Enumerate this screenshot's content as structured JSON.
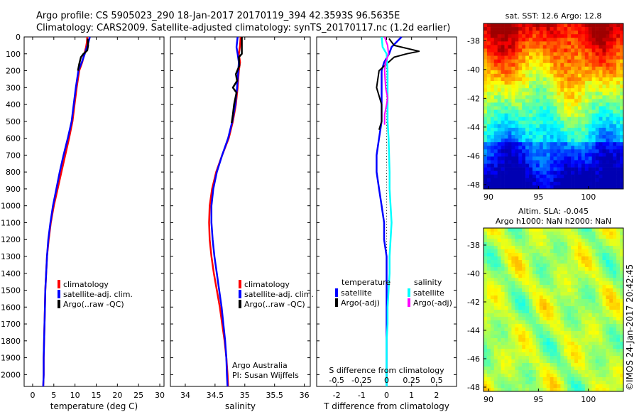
{
  "header": {
    "line1": "Argo profile: CS 5905023_290 18-Jan-2017 20170119_394 42.3593S 96.5635E",
    "line2": "Climatology: CARS2009. Satellite-adjusted climatology: synTS_20170117.nc (1.2d earlier)"
  },
  "colors": {
    "clim": "#ff0000",
    "sat": "#0000ff",
    "argo": "#000000",
    "sat_s": "#00ffff",
    "argo_s": "#ff00ff"
  },
  "chart_data": [
    {
      "type": "line",
      "xlabel": "temperature (deg C)",
      "xlim": [
        -2,
        31
      ],
      "ylim": [
        2070,
        0
      ],
      "xticks": [
        0,
        5,
        10,
        15,
        20,
        25,
        30
      ],
      "yticks": [
        0,
        100,
        200,
        300,
        400,
        500,
        600,
        700,
        800,
        900,
        1000,
        1100,
        1200,
        1300,
        1400,
        1500,
        1600,
        1700,
        1800,
        1900,
        2000
      ],
      "legend": [
        "climatology",
        "satellite-adj. clim.",
        "Argo(..raw -QC)"
      ],
      "series": [
        {
          "name": "climatology",
          "color": "clim",
          "points": [
            [
              12.9,
              0
            ],
            [
              12.8,
              30
            ],
            [
              12.6,
              60
            ],
            [
              12.2,
              100
            ],
            [
              11.7,
              150
            ],
            [
              11.0,
              200
            ],
            [
              10.4,
              300
            ],
            [
              9.9,
              400
            ],
            [
              9.4,
              500
            ],
            [
              8.6,
              600
            ],
            [
              7.7,
              700
            ],
            [
              6.8,
              800
            ],
            [
              5.9,
              900
            ],
            [
              5.0,
              1000
            ],
            [
              4.3,
              1100
            ],
            [
              3.8,
              1200
            ],
            [
              3.4,
              1300
            ],
            [
              3.2,
              1400
            ],
            [
              3.0,
              1500
            ],
            [
              2.9,
              1600
            ],
            [
              2.8,
              1700
            ],
            [
              2.7,
              1800
            ],
            [
              2.6,
              1900
            ],
            [
              2.6,
              2000
            ],
            [
              2.5,
              2070
            ]
          ]
        },
        {
          "name": "satellite-adj. clim.",
          "color": "sat",
          "points": [
            [
              13.5,
              0
            ],
            [
              13.2,
              30
            ],
            [
              12.8,
              60
            ],
            [
              12.3,
              100
            ],
            [
              11.6,
              150
            ],
            [
              10.8,
              200
            ],
            [
              10.2,
              300
            ],
            [
              9.7,
              400
            ],
            [
              9.2,
              500
            ],
            [
              8.3,
              600
            ],
            [
              7.3,
              700
            ],
            [
              6.4,
              800
            ],
            [
              5.6,
              900
            ],
            [
              4.8,
              1000
            ],
            [
              4.2,
              1100
            ],
            [
              3.7,
              1200
            ],
            [
              3.4,
              1300
            ],
            [
              3.2,
              1400
            ],
            [
              3.0,
              1500
            ],
            [
              2.9,
              1600
            ],
            [
              2.8,
              1700
            ],
            [
              2.7,
              1800
            ],
            [
              2.6,
              1900
            ],
            [
              2.6,
              2000
            ],
            [
              2.5,
              2070
            ]
          ]
        },
        {
          "name": "Argo(..raw -QC)",
          "color": "argo",
          "points": [
            [
              13.0,
              10
            ],
            [
              13.1,
              50
            ],
            [
              12.9,
              80
            ],
            [
              12.0,
              100
            ],
            [
              11.4,
              120
            ],
            [
              11.0,
              160
            ],
            [
              10.7,
              200
            ]
          ]
        }
      ]
    },
    {
      "type": "line",
      "xlabel": "salinity",
      "xlim": [
        33.75,
        36.1
      ],
      "ylim": [
        2070,
        0
      ],
      "xticks": [
        34,
        34.5,
        35,
        35.5,
        36
      ],
      "yticks": [
        0,
        100,
        200,
        300,
        400,
        500,
        600,
        700,
        800,
        900,
        1000,
        1100,
        1200,
        1300,
        1400,
        1500,
        1600,
        1700,
        1800,
        1900,
        2000
      ],
      "legend": [
        "climatology",
        "satellite-adj. clim.",
        "Argo(..raw -QC)"
      ],
      "annotation": [
        "Argo Australia",
        "PI: Susan Wijffels"
      ],
      "series": [
        {
          "name": "climatology",
          "color": "clim",
          "points": [
            [
              34.93,
              0
            ],
            [
              34.92,
              50
            ],
            [
              34.9,
              100
            ],
            [
              34.92,
              150
            ],
            [
              34.9,
              200
            ],
            [
              34.88,
              300
            ],
            [
              34.85,
              400
            ],
            [
              34.8,
              500
            ],
            [
              34.73,
              600
            ],
            [
              34.62,
              700
            ],
            [
              34.52,
              800
            ],
            [
              34.45,
              900
            ],
            [
              34.41,
              1000
            ],
            [
              34.4,
              1100
            ],
            [
              34.41,
              1200
            ],
            [
              34.44,
              1300
            ],
            [
              34.48,
              1400
            ],
            [
              34.53,
              1500
            ],
            [
              34.58,
              1600
            ],
            [
              34.62,
              1700
            ],
            [
              34.66,
              1800
            ],
            [
              34.69,
              1900
            ],
            [
              34.71,
              2000
            ],
            [
              34.72,
              2070
            ]
          ]
        },
        {
          "name": "satellite-adj. clim.",
          "color": "sat",
          "points": [
            [
              34.88,
              0
            ],
            [
              34.86,
              60
            ],
            [
              34.88,
              100
            ],
            [
              34.9,
              150
            ],
            [
              34.89,
              200
            ],
            [
              34.87,
              300
            ],
            [
              34.84,
              400
            ],
            [
              34.79,
              500
            ],
            [
              34.72,
              600
            ],
            [
              34.62,
              700
            ],
            [
              34.53,
              800
            ],
            [
              34.47,
              900
            ],
            [
              34.44,
              1000
            ],
            [
              34.44,
              1100
            ],
            [
              34.46,
              1200
            ],
            [
              34.49,
              1300
            ],
            [
              34.53,
              1400
            ],
            [
              34.57,
              1500
            ],
            [
              34.61,
              1600
            ],
            [
              34.64,
              1700
            ],
            [
              34.67,
              1800
            ],
            [
              34.69,
              1900
            ],
            [
              34.7,
              2000
            ],
            [
              34.71,
              2070
            ]
          ]
        },
        {
          "name": "Argo(..raw -QC)",
          "color": "argo",
          "points": [
            [
              34.95,
              0
            ],
            [
              34.95,
              100
            ],
            [
              34.9,
              120
            ],
            [
              34.91,
              170
            ],
            [
              34.85,
              220
            ],
            [
              34.87,
              260
            ],
            [
              34.8,
              300
            ],
            [
              34.86,
              330
            ],
            [
              34.82,
              400
            ],
            [
              34.8,
              460
            ],
            [
              34.78,
              510
            ]
          ]
        }
      ]
    },
    {
      "type": "line",
      "xlabel": "T difference from climatology",
      "xlabel_top": "S difference from climatology",
      "xlim": [
        -2.8,
        2.8
      ],
      "ylim": [
        2070,
        0
      ],
      "xticks": [
        -2,
        -1,
        0,
        1,
        2
      ],
      "xticks_top": [
        [
          -0.5,
          "-0.5"
        ],
        [
          -0.25,
          "-0.25"
        ],
        [
          0,
          "0"
        ],
        [
          0.25,
          "0.25"
        ],
        [
          0.5,
          "0.5"
        ]
      ],
      "s_scale": 4,
      "yticks": [
        0,
        100,
        200,
        300,
        400,
        500,
        600,
        700,
        800,
        900,
        1000,
        1100,
        1200,
        1300,
        1400,
        1500,
        1600,
        1700,
        1800,
        1900,
        2000
      ],
      "legend_headers": [
        "temperature",
        "salinity"
      ],
      "legend": [
        "satellite",
        "Argo(-adj)",
        "satellite",
        "Argo(-adj)"
      ],
      "series": [
        {
          "name": "satellite",
          "color": "sat",
          "points": [
            [
              0.6,
              0
            ],
            [
              0.4,
              30
            ],
            [
              0.2,
              60
            ],
            [
              0.1,
              100
            ],
            [
              -0.1,
              150
            ],
            [
              -0.2,
              200
            ],
            [
              -0.2,
              300
            ],
            [
              -0.2,
              400
            ],
            [
              -0.2,
              500
            ],
            [
              -0.3,
              600
            ],
            [
              -0.4,
              700
            ],
            [
              -0.4,
              800
            ],
            [
              -0.3,
              900
            ],
            [
              -0.2,
              1000
            ],
            [
              -0.1,
              1100
            ],
            [
              -0.1,
              1200
            ],
            [
              0,
              1300
            ],
            [
              0,
              1400
            ],
            [
              0,
              1500
            ],
            [
              0,
              1600
            ],
            [
              0,
              1700
            ],
            [
              0,
              1800
            ],
            [
              0,
              1900
            ],
            [
              0,
              2000
            ],
            [
              0,
              2070
            ]
          ]
        },
        {
          "name": "Argo(-adj)",
          "color": "argo",
          "points": [
            [
              0.1,
              10
            ],
            [
              0.3,
              50
            ],
            [
              1.3,
              85
            ],
            [
              0.8,
              100
            ],
            [
              0.3,
              120
            ],
            [
              0,
              160
            ],
            [
              -0.3,
              200
            ],
            [
              -0.4,
              300
            ],
            [
              -0.2,
              400
            ],
            [
              -0.2,
              500
            ],
            [
              -0.3,
              550
            ]
          ]
        },
        {
          "name": "satellite (S)",
          "color": "sat_s",
          "points": [
            [
              -0.05,
              0
            ],
            [
              -0.04,
              60
            ],
            [
              0,
              100
            ],
            [
              0.01,
              200
            ],
            [
              0.01,
              300
            ],
            [
              0.01,
              400
            ],
            [
              0.01,
              500
            ],
            [
              0.02,
              600
            ],
            [
              0.025,
              700
            ],
            [
              0.03,
              800
            ],
            [
              0.03,
              900
            ],
            [
              0.04,
              1000
            ],
            [
              0.05,
              1100
            ],
            [
              0.04,
              1200
            ],
            [
              0.03,
              1300
            ],
            [
              0.03,
              1400
            ],
            [
              0.02,
              1500
            ],
            [
              0.01,
              1600
            ],
            [
              0.01,
              1700
            ],
            [
              0,
              1800
            ],
            [
              0,
              1900
            ],
            [
              0,
              2000
            ],
            [
              0,
              2070
            ]
          ]
        },
        {
          "name": "Argo (S)",
          "color": "argo_s",
          "points": [
            [
              -0.02,
              0
            ],
            [
              0.01,
              50
            ],
            [
              0.02,
              100
            ],
            [
              -0.01,
              150
            ],
            [
              -0.02,
              200
            ],
            [
              -0.01,
              300
            ],
            [
              0.01,
              360
            ],
            [
              0,
              400
            ],
            [
              -0.02,
              460
            ],
            [
              -0.02,
              520
            ]
          ]
        }
      ]
    },
    {
      "type": "heatmap",
      "title": "sat. SST: 12.6  Argo: 12.8",
      "xlim": [
        89.5,
        103.5
      ],
      "ylim": [
        -48.3,
        -36.8
      ],
      "xticks": [
        90,
        95,
        100
      ],
      "yticks": [
        -38,
        -40,
        -42,
        -44,
        -46,
        -48
      ]
    },
    {
      "type": "heatmap",
      "title_lines": [
        "Altim. SLA: -0.045",
        "Argo h1000: NaN h2000: NaN"
      ],
      "xlim": [
        89.5,
        103.5
      ],
      "ylim": [
        -48.3,
        -36.8
      ],
      "xticks": [
        90,
        95,
        100
      ],
      "yticks": [
        -38,
        -40,
        -42,
        -44,
        -46,
        -48
      ]
    }
  ],
  "credit": "©IMOS 24-Jan-2017 20:42:45"
}
